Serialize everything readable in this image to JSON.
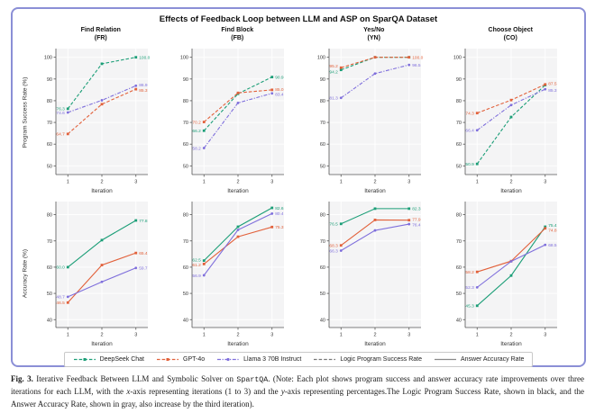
{
  "figure": {
    "title": "Effects of Feedback Loop between LLM and ASP on SparQA Dataset",
    "border_color": "#8b8fd6",
    "plot_bg": "#f4f4f5",
    "grid_color": "#ffffff",
    "axis_color": "#555555"
  },
  "row_labels": [
    "Program Success Rate (%)",
    "Accuracy Rate (%)"
  ],
  "x_label": "Iteration",
  "x_ticks": [
    "1",
    "2",
    "3"
  ],
  "chart_data": [
    {
      "type": "line",
      "title": "Find Relation",
      "subtitle": "(FR)",
      "ylabel": "Program Success Rate (%)",
      "xlabel": "Iteration",
      "x": [
        1,
        2,
        3
      ],
      "ylim": [
        46,
        104
      ],
      "yticks": [
        50,
        60,
        70,
        80,
        90,
        100
      ],
      "dashed": true,
      "grid": true,
      "series": [
        {
          "name": "DeepSeek Chat",
          "color": "#1b9e77",
          "marker": "square",
          "values": [
            76.3,
            97.0,
            100.0
          ],
          "label_start": "76.3",
          "label_end": "100.0"
        },
        {
          "name": "GPT-4o",
          "color": "#e2613b",
          "marker": "square",
          "values": [
            64.7,
            78.4,
            85.3
          ],
          "label_start": "64.7",
          "label_end": "85.3",
          "end_dy": 1.2
        },
        {
          "name": "Llama 3 70B Instruct",
          "color": "#7f6fdc",
          "marker": "circle",
          "values": [
            74.6,
            80.2,
            86.9
          ],
          "label_start": "74.6",
          "label_end": "86.9",
          "end_dy": -1.2
        }
      ]
    },
    {
      "type": "line",
      "title": "Find Block",
      "subtitle": "(FB)",
      "ylabel": "Program Success Rate (%)",
      "xlabel": "Iteration",
      "x": [
        1,
        2,
        3
      ],
      "ylim": [
        46,
        104
      ],
      "yticks": [
        50,
        60,
        70,
        80,
        90,
        100
      ],
      "dashed": true,
      "grid": true,
      "series": [
        {
          "name": "DeepSeek Chat",
          "color": "#1b9e77",
          "marker": "square",
          "values": [
            66.2,
            83.2,
            90.9
          ],
          "label_start": "66.2",
          "label_end": "90.9"
        },
        {
          "name": "GPT-4o",
          "color": "#e2613b",
          "marker": "square",
          "values": [
            70.2,
            83.6,
            85.0
          ],
          "label_start": "70.2",
          "label_end": "85.0",
          "end_dy": -0.8
        },
        {
          "name": "Llama 3 70B Instruct",
          "color": "#7f6fdc",
          "marker": "circle",
          "values": [
            58.2,
            79.0,
            83.4
          ],
          "label_start": "58.2",
          "label_end": "83.4",
          "end_dy": 0.8
        }
      ]
    },
    {
      "type": "line",
      "title": "Yes/No",
      "subtitle": "(YN)",
      "ylabel": "Program Success Rate (%)",
      "xlabel": "Iteration",
      "x": [
        1,
        2,
        3
      ],
      "ylim": [
        46,
        104
      ],
      "yticks": [
        50,
        60,
        70,
        80,
        90,
        100
      ],
      "dashed": true,
      "grid": true,
      "series": [
        {
          "name": "DeepSeek Chat",
          "color": "#1b9e77",
          "marker": "square",
          "values": [
            94.2,
            100.0,
            100.0
          ],
          "label_start": "94.2",
          "label_end": "",
          "start_dy": 2.2
        },
        {
          "name": "GPT-4o",
          "color": "#e2613b",
          "marker": "square",
          "values": [
            95.2,
            100.0,
            100.0
          ],
          "label_start": "95.2",
          "label_end": "100.0",
          "start_dy": -2.2
        },
        {
          "name": "Llama 3 70B Instruct",
          "color": "#7f6fdc",
          "marker": "circle",
          "values": [
            81.3,
            92.5,
            96.5
          ],
          "label_start": "81.3",
          "label_end": "96.5"
        }
      ]
    },
    {
      "type": "line",
      "title": "Choose Object",
      "subtitle": "(CO)",
      "ylabel": "Program Success Rate (%)",
      "xlabel": "Iteration",
      "x": [
        1,
        2,
        3
      ],
      "ylim": [
        46,
        104
      ],
      "yticks": [
        50,
        60,
        70,
        80,
        90,
        100
      ],
      "dashed": true,
      "grid": true,
      "series": [
        {
          "name": "DeepSeek Chat",
          "color": "#1b9e77",
          "marker": "square",
          "values": [
            50.9,
            72.5,
            87.2
          ],
          "label_start": "50.9",
          "label_end": ""
        },
        {
          "name": "GPT-4o",
          "color": "#e2613b",
          "marker": "square",
          "values": [
            74.3,
            80.3,
            87.5
          ],
          "label_start": "74.3",
          "label_end": "87.5",
          "end_dy": -1.2
        },
        {
          "name": "Llama 3 70B Instruct",
          "color": "#7f6fdc",
          "marker": "circle",
          "values": [
            66.4,
            78.0,
            85.3
          ],
          "label_start": "66.4",
          "label_end": "85.3",
          "end_dy": 1.2
        }
      ]
    },
    {
      "type": "line",
      "title": null,
      "subtitle": null,
      "ylabel": "Accuracy Rate (%)",
      "xlabel": "Iteration",
      "x": [
        1,
        2,
        3
      ],
      "ylim": [
        37,
        85
      ],
      "yticks": [
        40,
        50,
        60,
        70,
        80
      ],
      "dashed": false,
      "grid": true,
      "series": [
        {
          "name": "DeepSeek Chat",
          "color": "#1b9e77",
          "marker": "square",
          "values": [
            60.0,
            70.3,
            77.8
          ],
          "label_start": "60.0",
          "label_end": "77.8"
        },
        {
          "name": "GPT-4o",
          "color": "#e2613b",
          "marker": "square",
          "values": [
            46.5,
            60.8,
            65.4
          ],
          "label_start": "46.5",
          "label_end": "65.4"
        },
        {
          "name": "Llama 3 70B Instruct",
          "color": "#7f6fdc",
          "marker": "circle",
          "values": [
            48.7,
            54.4,
            59.7
          ],
          "label_start": "48.7",
          "label_end": "59.7"
        }
      ]
    },
    {
      "type": "line",
      "title": null,
      "subtitle": null,
      "ylabel": "Accuracy Rate (%)",
      "xlabel": "Iteration",
      "x": [
        1,
        2,
        3
      ],
      "ylim": [
        37,
        85
      ],
      "yticks": [
        40,
        50,
        60,
        70,
        80
      ],
      "dashed": false,
      "grid": true,
      "series": [
        {
          "name": "DeepSeek Chat",
          "color": "#1b9e77",
          "marker": "square",
          "values": [
            62.5,
            75.4,
            82.6
          ],
          "label_start": "62.5",
          "label_end": "82.6",
          "start_dy": -1.0
        },
        {
          "name": "GPT-4o",
          "color": "#e2613b",
          "marker": "square",
          "values": [
            61.2,
            71.6,
            75.3
          ],
          "label_start": "61.2",
          "label_end": "75.3",
          "start_dy": 1.0
        },
        {
          "name": "Llama 3 70B Instruct",
          "color": "#7f6fdc",
          "marker": "circle",
          "values": [
            56.9,
            74.2,
            80.4
          ],
          "label_start": "56.9",
          "label_end": "80.4"
        }
      ]
    },
    {
      "type": "line",
      "title": null,
      "subtitle": null,
      "ylabel": "Accuracy Rate (%)",
      "xlabel": "Iteration",
      "x": [
        1,
        2,
        3
      ],
      "ylim": [
        37,
        85
      ],
      "yticks": [
        40,
        50,
        60,
        70,
        80
      ],
      "dashed": false,
      "grid": true,
      "series": [
        {
          "name": "DeepSeek Chat",
          "color": "#1b9e77",
          "marker": "square",
          "values": [
            76.5,
            82.3,
            82.3
          ],
          "label_start": "76.5",
          "label_end": "82.3"
        },
        {
          "name": "GPT-4o",
          "color": "#e2613b",
          "marker": "square",
          "values": [
            68.3,
            78.0,
            77.9
          ],
          "label_start": "68.3",
          "label_end": "77.9",
          "end_dy": -0.8
        },
        {
          "name": "Llama 3 70B Instruct",
          "color": "#7f6fdc",
          "marker": "circle",
          "values": [
            66.3,
            74.0,
            76.4
          ],
          "label_start": "66.3",
          "label_end": "76.4",
          "end_dy": 0.8
        }
      ]
    },
    {
      "type": "line",
      "title": null,
      "subtitle": null,
      "ylabel": "Accuracy Rate (%)",
      "xlabel": "Iteration",
      "x": [
        1,
        2,
        3
      ],
      "ylim": [
        37,
        85
      ],
      "yticks": [
        40,
        50,
        60,
        70,
        80
      ],
      "dashed": false,
      "grid": true,
      "series": [
        {
          "name": "DeepSeek Chat",
          "color": "#1b9e77",
          "marker": "square",
          "values": [
            45.3,
            56.8,
            75.4
          ],
          "label_start": "45.3",
          "label_end": "75.4",
          "end_dy": -2.0
        },
        {
          "name": "GPT-4o",
          "color": "#e2613b",
          "marker": "square",
          "values": [
            58.2,
            62.3,
            74.8
          ],
          "label_start": "58.2",
          "label_end": "74.8",
          "end_dy": 2.0
        },
        {
          "name": "Llama 3 70B Instruct",
          "color": "#7f6fdc",
          "marker": "circle",
          "values": [
            52.3,
            62.2,
            68.5
          ],
          "label_start": "52.3",
          "label_end": "68.5"
        }
      ]
    }
  ],
  "legend": {
    "items": [
      {
        "label": "DeepSeek Chat",
        "color": "#1b9e77",
        "style": "dashed-marker"
      },
      {
        "label": "GPT-4o",
        "color": "#e2613b",
        "style": "dashed-marker"
      },
      {
        "label": "Llama 3 70B Instruct",
        "color": "#7f6fdc",
        "style": "dashdot-marker"
      },
      {
        "label": "Logic Program Success Rate",
        "color": "#777777",
        "style": "dashed"
      },
      {
        "label": "Answer Accuracy Rate",
        "color": "#8a8a8a",
        "style": "solid"
      }
    ]
  },
  "caption": {
    "fig_label": "Fig. 3.",
    "part1": "  Iterative Feedback Between LLM and Symbolic Solver on ",
    "code1": "SpartQA",
    "part2": ". (Note: Each plot shows program success and answer accuracy rate improvements over three iterations for each LLM, with the ",
    "italic1": "x",
    "part3": "-axis representing iterations (1 to 3) and the ",
    "italic2": "y",
    "part4": "-axis representing percentages.The Logic Program Success Rate, shown in black, and the Answer Accuracy Rate, shown in gray, also increase by the third iteration)."
  }
}
